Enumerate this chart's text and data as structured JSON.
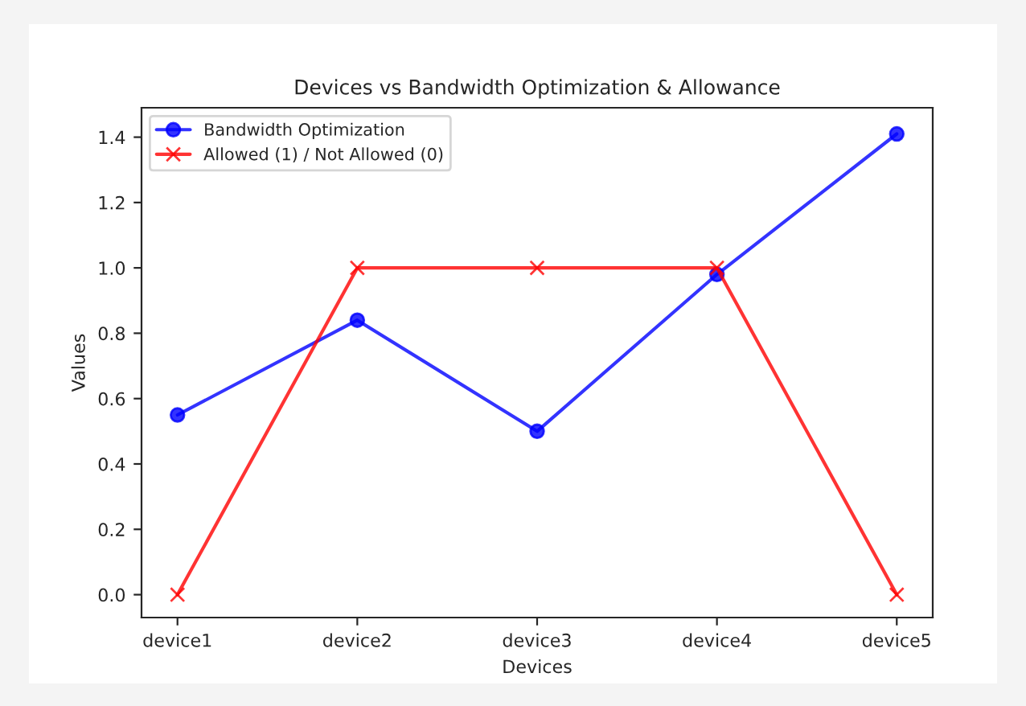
{
  "chart_data": {
    "type": "line",
    "title": "Devices vs Bandwidth Optimization & Allowance",
    "xlabel": "Devices",
    "ylabel": "Values",
    "categories": [
      "device1",
      "device2",
      "device3",
      "device4",
      "device5"
    ],
    "series": [
      {
        "name": "Bandwidth Optimization",
        "color": "#0000ff",
        "values": [
          0.55,
          0.84,
          0.5,
          0.98,
          1.41
        ],
        "marker": "circle"
      },
      {
        "name": "Allowed (1) / Not Allowed (0)",
        "color": "#ff0000",
        "values": [
          0,
          1,
          1,
          1,
          0
        ],
        "marker": "cross"
      }
    ],
    "ylim": [
      -0.07,
      1.49
    ],
    "yticks": [
      {
        "value": 0,
        "label": "0.0"
      },
      0.2,
      0.4,
      0.6,
      0.8,
      {
        "value": 1,
        "label": "1.0"
      },
      1.2,
      1.4
    ],
    "legend": "top left",
    "grid": false
  }
}
